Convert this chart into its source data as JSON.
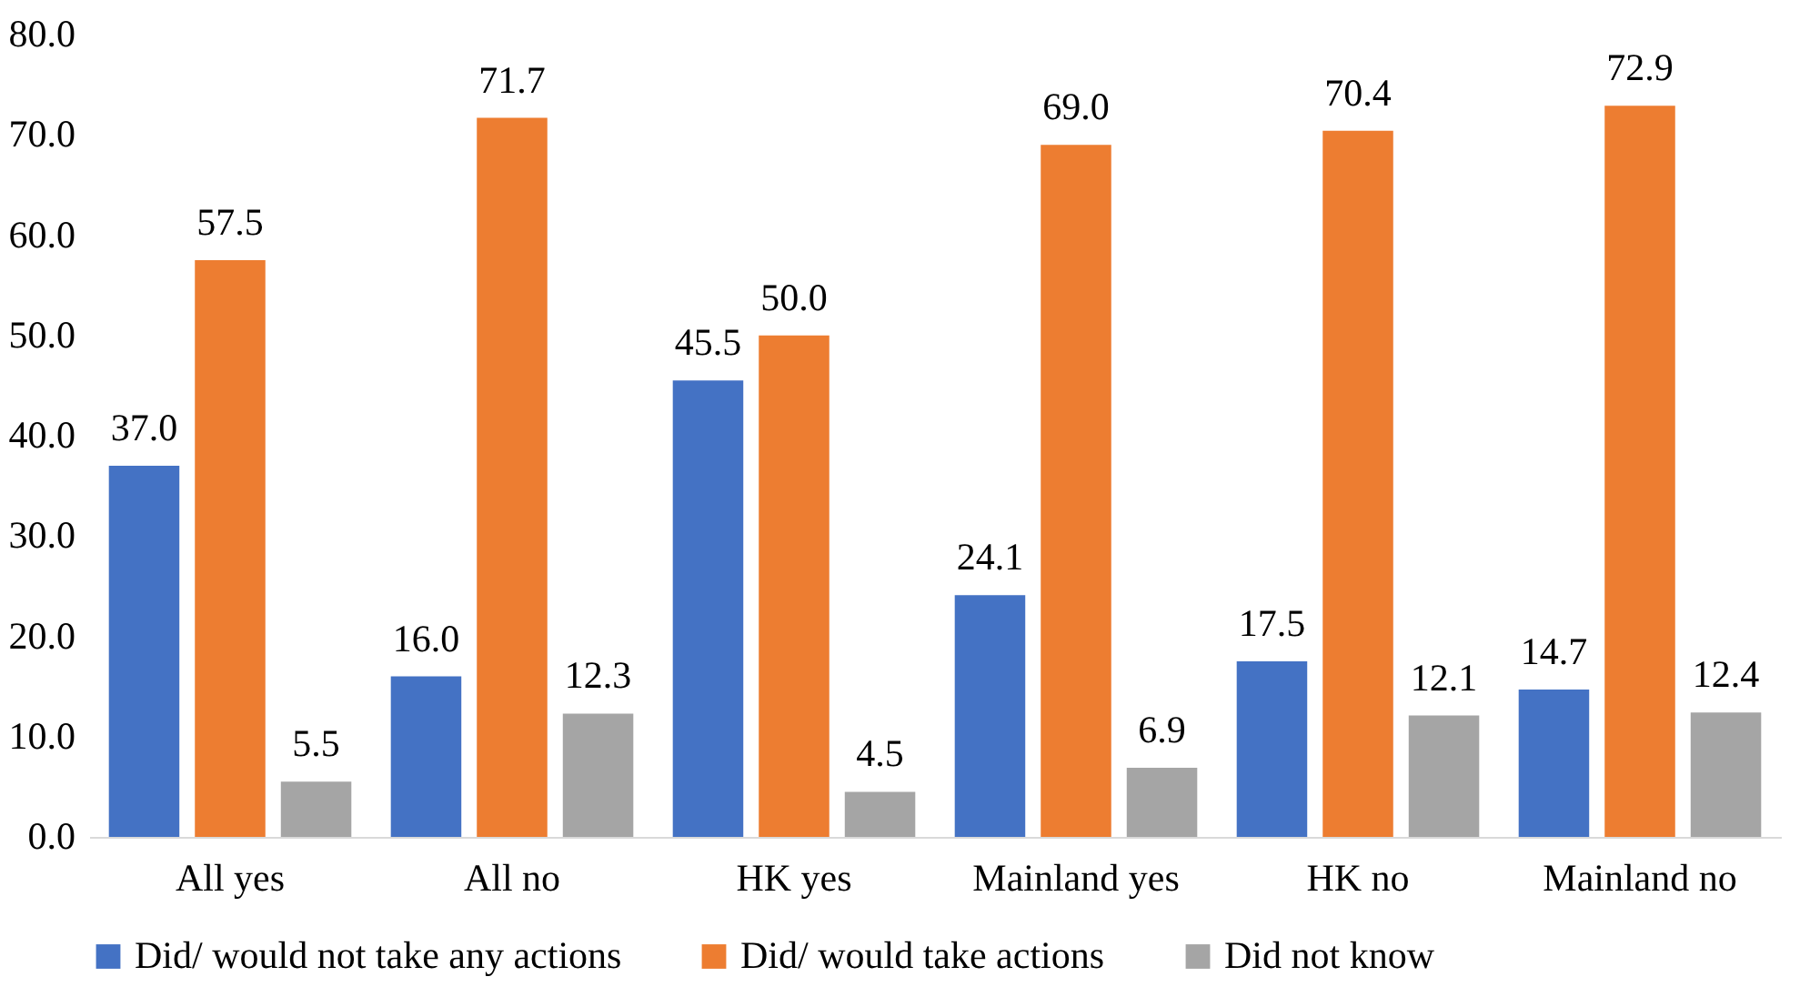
{
  "chart_data": {
    "type": "bar",
    "categories": [
      "All yes",
      "All no",
      "HK yes",
      "Mainland yes",
      "HK no",
      "Mainland no"
    ],
    "series": [
      {
        "name": "Did/ would not take any actions",
        "color": "#4472c4",
        "values": [
          37.0,
          16.0,
          45.5,
          24.1,
          17.5,
          14.7
        ],
        "value_labels": [
          "37.0",
          "16.0",
          "45.5",
          "24.1",
          "17.5",
          "14.7"
        ]
      },
      {
        "name": "Did/ would take actions",
        "color": "#ed7d31",
        "values": [
          57.5,
          71.7,
          50.0,
          69.0,
          70.4,
          72.9
        ],
        "value_labels": [
          "57.5",
          "71.7",
          "50.0",
          "69.0",
          "70.4",
          "72.9"
        ]
      },
      {
        "name": "Did not know",
        "color": "#a5a5a5",
        "values": [
          5.5,
          12.3,
          4.5,
          6.9,
          12.1,
          12.4
        ],
        "value_labels": [
          "5.5",
          "12.3",
          "4.5",
          "6.9",
          "12.1",
          "12.4"
        ]
      }
    ],
    "ylim": [
      0,
      80
    ],
    "yticks": [
      {
        "value": 0,
        "label": "0.0"
      },
      {
        "value": 10,
        "label": "10.0"
      },
      {
        "value": 20,
        "label": "20.0"
      },
      {
        "value": 30,
        "label": "30.0"
      },
      {
        "value": 40,
        "label": "40.0"
      },
      {
        "value": 50,
        "label": "50.0"
      },
      {
        "value": 60,
        "label": "60.0"
      },
      {
        "value": 70,
        "label": "70.0"
      },
      {
        "value": 80,
        "label": "80.0"
      }
    ],
    "grid": false,
    "legend": "bottom"
  }
}
